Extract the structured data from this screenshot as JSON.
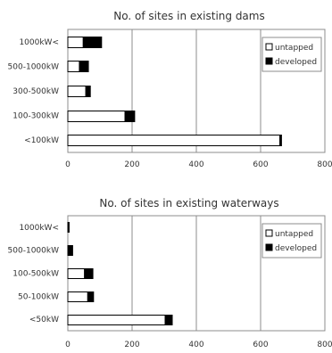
{
  "chart_data": [
    {
      "type": "bar",
      "orientation": "horizontal",
      "stacked": true,
      "title": "No. of sites in existing dams",
      "categories": [
        "1000kW<",
        "500-1000kW",
        "300-500kW",
        "100-300kW",
        "<100kW"
      ],
      "series": [
        {
          "name": "untapped",
          "color": "#ffffff",
          "values": [
            48,
            36,
            56,
            178,
            660
          ]
        },
        {
          "name": "developed",
          "color": "#000000",
          "values": [
            57,
            28,
            14,
            30,
            5
          ]
        }
      ],
      "xticks": [
        "0",
        "200",
        "400",
        "600",
        "800"
      ],
      "xlim": [
        0,
        800
      ],
      "grid": "vertical",
      "legend": "top-right"
    },
    {
      "type": "bar",
      "orientation": "horizontal",
      "stacked": true,
      "title": "No. of sites in existing waterways",
      "categories": [
        "1000kW<",
        "500-1000kW",
        "100-500kW",
        "50-100kW",
        "<50kW"
      ],
      "series": [
        {
          "name": "untapped",
          "color": "#ffffff",
          "values": [
            1,
            3,
            52,
            62,
            303
          ]
        },
        {
          "name": "developed",
          "color": "#000000",
          "values": [
            3,
            12,
            26,
            18,
            22
          ]
        }
      ],
      "xticks": [
        "0",
        "200",
        "400",
        "600",
        "800"
      ],
      "xlim": [
        0,
        800
      ],
      "grid": "vertical",
      "legend": "top-right"
    }
  ]
}
